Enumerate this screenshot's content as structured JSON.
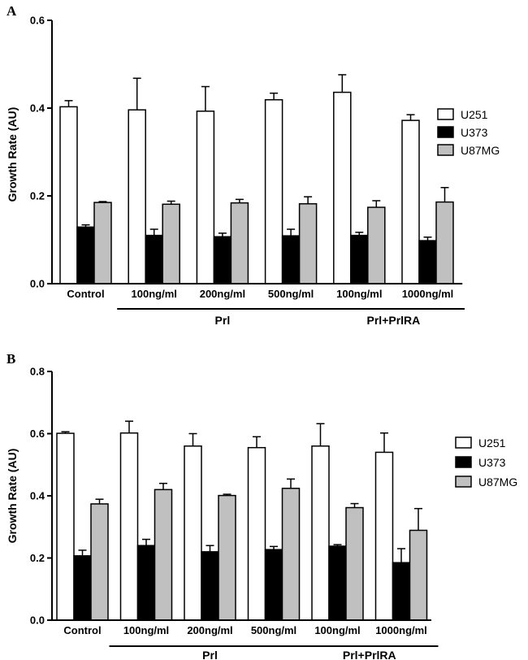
{
  "panels": [
    {
      "letter": "A",
      "chart_data": {
        "type": "bar",
        "ylabel": "Growth Rate (AU)",
        "ylim": [
          0,
          0.6
        ],
        "yticks": [
          "0.0",
          "0.2",
          "0.4",
          "0.6"
        ],
        "categories": [
          "Control",
          "100ng/ml",
          "200ng/ml",
          "500ng/ml",
          "100ng/ml",
          "1000ng/ml"
        ],
        "groups": [
          {
            "label": "Prl",
            "from": 1,
            "to": 3
          },
          {
            "label": "Prl+PrlRA",
            "from": 4,
            "to": 5
          }
        ],
        "series": [
          {
            "name": "U251",
            "color": "#ffffff",
            "values": [
              0.403,
              0.396,
              0.393,
              0.419,
              0.436,
              0.372
            ],
            "errors": [
              0.014,
              0.072,
              0.056,
              0.015,
              0.04,
              0.013
            ]
          },
          {
            "name": "U373",
            "color": "#000000",
            "values": [
              0.129,
              0.11,
              0.107,
              0.109,
              0.11,
              0.098
            ],
            "errors": [
              0.005,
              0.014,
              0.008,
              0.015,
              0.007,
              0.008
            ]
          },
          {
            "name": "U87MG",
            "color": "#c0c0c0",
            "values": [
              0.185,
              0.181,
              0.184,
              0.182,
              0.174,
              0.186
            ],
            "errors": [
              0.002,
              0.007,
              0.008,
              0.016,
              0.015,
              0.033
            ]
          }
        ]
      }
    },
    {
      "letter": "B",
      "chart_data": {
        "type": "bar",
        "ylabel": "Growth Rate (AU)",
        "ylim": [
          0,
          0.8
        ],
        "yticks": [
          "0.0",
          "0.2",
          "0.4",
          "0.6",
          "0.8"
        ],
        "categories": [
          "Control",
          "100ng/ml",
          "200ng/ml",
          "500ng/ml",
          "100ng/ml",
          "1000ng/ml"
        ],
        "groups": [
          {
            "label": "Prl",
            "from": 1,
            "to": 3
          },
          {
            "label": "Prl+PrlRA",
            "from": 4,
            "to": 5
          }
        ],
        "series": [
          {
            "name": "U251",
            "color": "#ffffff",
            "values": [
              0.601,
              0.602,
              0.56,
              0.555,
              0.56,
              0.54
            ],
            "errors": [
              0.005,
              0.038,
              0.04,
              0.035,
              0.072,
              0.062
            ]
          },
          {
            "name": "U373",
            "color": "#000000",
            "values": [
              0.207,
              0.24,
              0.22,
              0.227,
              0.238,
              0.185
            ],
            "errors": [
              0.018,
              0.02,
              0.02,
              0.01,
              0.005,
              0.045
            ]
          },
          {
            "name": "U87MG",
            "color": "#c0c0c0",
            "values": [
              0.374,
              0.42,
              0.401,
              0.424,
              0.362,
              0.289
            ],
            "errors": [
              0.015,
              0.02,
              0.004,
              0.03,
              0.013,
              0.07
            ]
          }
        ]
      }
    }
  ]
}
